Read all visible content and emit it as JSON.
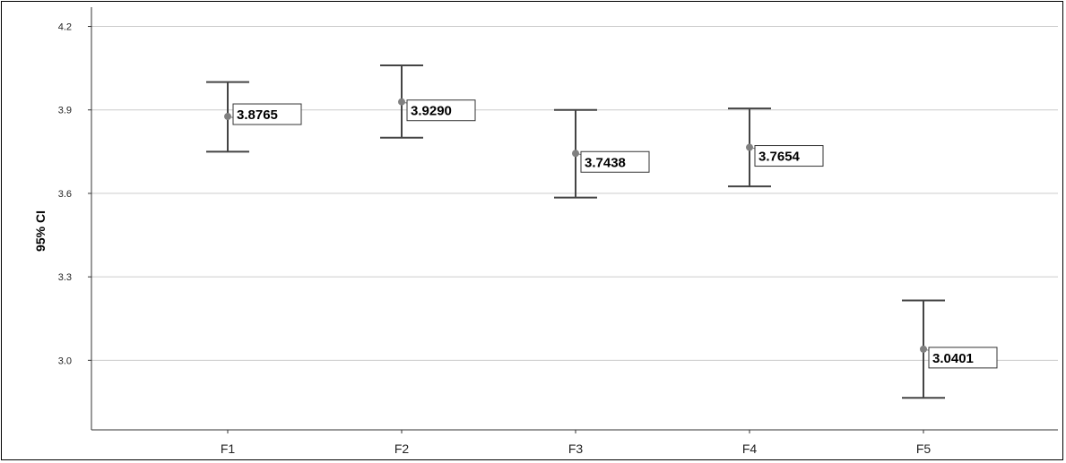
{
  "chart_data": {
    "type": "errorbar",
    "ylabel": "95% CI",
    "xlabel": "",
    "title": "",
    "ylim": [
      2.75,
      4.25
    ],
    "yticks": [
      3.0,
      3.3,
      3.6,
      3.9,
      4.2
    ],
    "ytick_labels": [
      "3.0",
      "3.3",
      "3.6",
      "3.9",
      "4.2"
    ],
    "grid": "horizontal",
    "categories": [
      "F1",
      "F2",
      "F3",
      "F4",
      "F5"
    ],
    "series": [
      {
        "means": [
          3.8765,
          3.929,
          3.7438,
          3.7654,
          3.0401
        ],
        "labels": [
          "3.8765",
          "3.9290",
          "3.7438",
          "3.7654",
          "3.0401"
        ],
        "ci_lower": [
          3.75,
          3.8,
          3.585,
          3.625,
          2.865
        ],
        "ci_upper": [
          4.0,
          4.06,
          3.9,
          3.905,
          3.215
        ]
      }
    ],
    "colors": {
      "bar": "#444444",
      "mean": "#808080",
      "grid": "#cccccc"
    }
  }
}
